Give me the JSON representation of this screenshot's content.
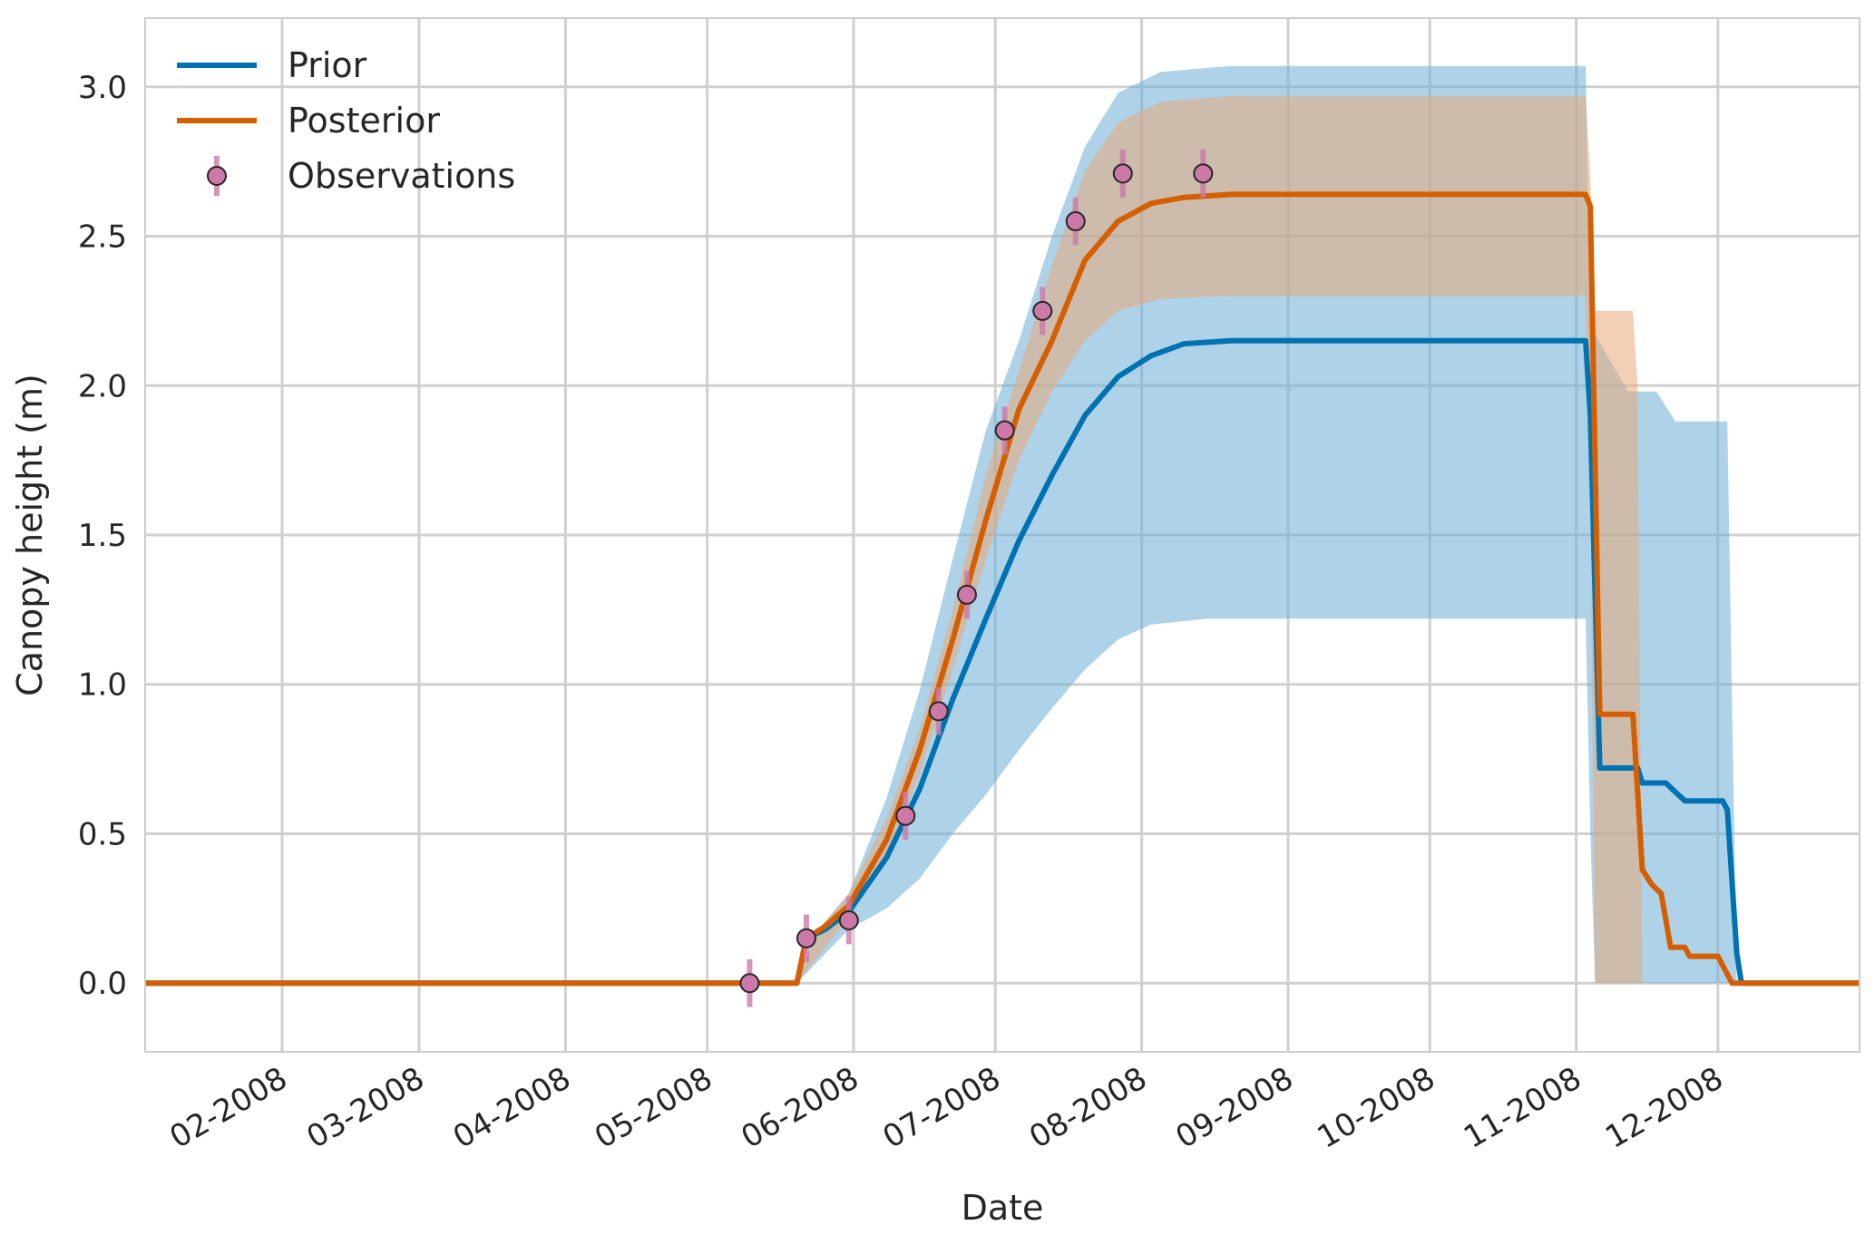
{
  "chart_data": {
    "type": "line",
    "title": "",
    "xlabel": "Date",
    "ylabel": "Canopy height (m)",
    "x_tick_labels": [
      "02-2008",
      "03-2008",
      "04-2008",
      "05-2008",
      "06-2008",
      "07-2008",
      "08-2008",
      "09-2008",
      "10-2008",
      "11-2008",
      "12-2008"
    ],
    "x_ticks": [
      "2008-02-01",
      "2008-03-01",
      "2008-04-01",
      "2008-05-01",
      "2008-06-01",
      "2008-07-01",
      "2008-08-01",
      "2008-09-01",
      "2008-10-01",
      "2008-11-01",
      "2008-12-01"
    ],
    "xlim": [
      "2008-01-03",
      "2008-12-31"
    ],
    "y_tick_labels": [
      "0.0",
      "0.5",
      "1.0",
      "1.5",
      "2.0",
      "2.5",
      "3.0"
    ],
    "ylim": [
      -0.23,
      3.23
    ],
    "grid": true,
    "legend": {
      "position": "top-left",
      "entries": [
        {
          "label": "Prior",
          "kind": "line",
          "color": "#0072b2"
        },
        {
          "label": "Posterior",
          "kind": "line",
          "color": "#d55e00"
        },
        {
          "label": "Observations",
          "kind": "marker",
          "color": "#cc79a7"
        }
      ]
    },
    "series": [
      {
        "name": "Prior",
        "color": "#0072b2",
        "band_color": "#6baed6",
        "points": [
          [
            "2008-01-03",
            0.0
          ],
          [
            "2008-05-20",
            0.0
          ],
          [
            "2008-05-22",
            0.15
          ],
          [
            "2008-05-26",
            0.18
          ],
          [
            "2008-05-31",
            0.24
          ],
          [
            "2008-06-08",
            0.42
          ],
          [
            "2008-06-15",
            0.65
          ],
          [
            "2008-06-22",
            0.95
          ],
          [
            "2008-06-29",
            1.22
          ],
          [
            "2008-07-06",
            1.48
          ],
          [
            "2008-07-13",
            1.7
          ],
          [
            "2008-07-20",
            1.9
          ],
          [
            "2008-07-27",
            2.03
          ],
          [
            "2008-08-03",
            2.1
          ],
          [
            "2008-08-10",
            2.14
          ],
          [
            "2008-08-20",
            2.15
          ],
          [
            "2008-11-03",
            2.15
          ],
          [
            "2008-11-04",
            1.9
          ],
          [
            "2008-11-06",
            0.72
          ],
          [
            "2008-11-14",
            0.72
          ],
          [
            "2008-11-15",
            0.67
          ],
          [
            "2008-11-20",
            0.67
          ],
          [
            "2008-11-22",
            0.64
          ],
          [
            "2008-11-24",
            0.61
          ],
          [
            "2008-12-02",
            0.61
          ],
          [
            "2008-12-03",
            0.58
          ],
          [
            "2008-12-05",
            0.1
          ],
          [
            "2008-12-06",
            0.0
          ],
          [
            "2008-12-31",
            0.0
          ]
        ],
        "band_upper": [
          [
            "2008-05-20",
            0.0
          ],
          [
            "2008-05-24",
            0.17
          ],
          [
            "2008-05-31",
            0.3
          ],
          [
            "2008-06-08",
            0.62
          ],
          [
            "2008-06-15",
            0.98
          ],
          [
            "2008-06-22",
            1.42
          ],
          [
            "2008-06-29",
            1.85
          ],
          [
            "2008-07-06",
            2.15
          ],
          [
            "2008-07-13",
            2.5
          ],
          [
            "2008-07-20",
            2.8
          ],
          [
            "2008-07-27",
            2.98
          ],
          [
            "2008-08-05",
            3.05
          ],
          [
            "2008-08-20",
            3.07
          ],
          [
            "2008-11-03",
            3.07
          ],
          [
            "2008-11-04",
            2.2
          ],
          [
            "2008-11-09",
            2.06
          ],
          [
            "2008-11-12",
            1.98
          ],
          [
            "2008-11-18",
            1.98
          ],
          [
            "2008-11-22",
            1.88
          ],
          [
            "2008-12-03",
            1.88
          ],
          [
            "2008-12-05",
            0.0
          ]
        ],
        "band_lower": [
          [
            "2008-05-20",
            0.0
          ],
          [
            "2008-05-31",
            0.18
          ],
          [
            "2008-06-08",
            0.25
          ],
          [
            "2008-06-15",
            0.35
          ],
          [
            "2008-06-22",
            0.5
          ],
          [
            "2008-06-29",
            0.63
          ],
          [
            "2008-07-06",
            0.78
          ],
          [
            "2008-07-13",
            0.92
          ],
          [
            "2008-07-20",
            1.05
          ],
          [
            "2008-07-27",
            1.15
          ],
          [
            "2008-08-03",
            1.2
          ],
          [
            "2008-08-15",
            1.22
          ],
          [
            "2008-11-03",
            1.22
          ],
          [
            "2008-11-04",
            0.5
          ],
          [
            "2008-11-05",
            0.0
          ]
        ]
      },
      {
        "name": "Posterior",
        "color": "#d55e00",
        "band_color": "#e8a878",
        "points": [
          [
            "2008-01-03",
            0.0
          ],
          [
            "2008-05-20",
            0.0
          ],
          [
            "2008-05-22",
            0.15
          ],
          [
            "2008-05-26",
            0.19
          ],
          [
            "2008-05-31",
            0.26
          ],
          [
            "2008-06-08",
            0.48
          ],
          [
            "2008-06-15",
            0.78
          ],
          [
            "2008-06-22",
            1.15
          ],
          [
            "2008-06-29",
            1.55
          ],
          [
            "2008-07-06",
            1.92
          ],
          [
            "2008-07-13",
            2.15
          ],
          [
            "2008-07-20",
            2.42
          ],
          [
            "2008-07-27",
            2.55
          ],
          [
            "2008-08-03",
            2.61
          ],
          [
            "2008-08-10",
            2.63
          ],
          [
            "2008-08-20",
            2.64
          ],
          [
            "2008-11-03",
            2.64
          ],
          [
            "2008-11-04",
            2.6
          ],
          [
            "2008-11-06",
            0.9
          ],
          [
            "2008-11-13",
            0.9
          ],
          [
            "2008-11-15",
            0.38
          ],
          [
            "2008-11-17",
            0.33
          ],
          [
            "2008-11-19",
            0.3
          ],
          [
            "2008-11-21",
            0.12
          ],
          [
            "2008-11-24",
            0.12
          ],
          [
            "2008-11-25",
            0.09
          ],
          [
            "2008-12-01",
            0.09
          ],
          [
            "2008-12-02",
            0.06
          ],
          [
            "2008-12-04",
            0.0
          ],
          [
            "2008-12-31",
            0.0
          ]
        ],
        "band_upper": [
          [
            "2008-05-20",
            0.0
          ],
          [
            "2008-05-24",
            0.17
          ],
          [
            "2008-05-31",
            0.3
          ],
          [
            "2008-06-08",
            0.55
          ],
          [
            "2008-06-15",
            0.85
          ],
          [
            "2008-06-22",
            1.25
          ],
          [
            "2008-06-29",
            1.7
          ],
          [
            "2008-07-06",
            2.05
          ],
          [
            "2008-07-13",
            2.4
          ],
          [
            "2008-07-20",
            2.72
          ],
          [
            "2008-07-27",
            2.88
          ],
          [
            "2008-08-05",
            2.95
          ],
          [
            "2008-08-20",
            2.97
          ],
          [
            "2008-11-03",
            2.97
          ],
          [
            "2008-11-04",
            2.7
          ],
          [
            "2008-11-05",
            2.25
          ],
          [
            "2008-11-13",
            2.25
          ],
          [
            "2008-11-14",
            2.0
          ],
          [
            "2008-11-15",
            0.0
          ]
        ],
        "band_lower": [
          [
            "2008-05-20",
            0.0
          ],
          [
            "2008-05-31",
            0.22
          ],
          [
            "2008-06-08",
            0.42
          ],
          [
            "2008-06-15",
            0.7
          ],
          [
            "2008-06-22",
            1.05
          ],
          [
            "2008-06-29",
            1.42
          ],
          [
            "2008-07-06",
            1.75
          ],
          [
            "2008-07-13",
            1.98
          ],
          [
            "2008-07-20",
            2.15
          ],
          [
            "2008-07-27",
            2.25
          ],
          [
            "2008-08-05",
            2.29
          ],
          [
            "2008-08-20",
            2.3
          ],
          [
            "2008-11-03",
            2.3
          ],
          [
            "2008-11-04",
            1.6
          ],
          [
            "2008-11-05",
            0.0
          ]
        ]
      }
    ],
    "observations": {
      "name": "Observations",
      "color": "#cc79a7",
      "points": [
        {
          "x": "2008-05-10",
          "y": 0.0,
          "err": 0.08
        },
        {
          "x": "2008-05-22",
          "y": 0.15,
          "err": 0.08
        },
        {
          "x": "2008-05-31",
          "y": 0.21,
          "err": 0.08
        },
        {
          "x": "2008-06-12",
          "y": 0.56,
          "err": 0.08
        },
        {
          "x": "2008-06-19",
          "y": 0.91,
          "err": 0.08
        },
        {
          "x": "2008-06-25",
          "y": 1.3,
          "err": 0.08
        },
        {
          "x": "2008-07-03",
          "y": 1.85,
          "err": 0.08
        },
        {
          "x": "2008-07-11",
          "y": 2.25,
          "err": 0.08
        },
        {
          "x": "2008-07-18",
          "y": 2.55,
          "err": 0.08
        },
        {
          "x": "2008-07-28",
          "y": 2.71,
          "err": 0.08
        },
        {
          "x": "2008-08-14",
          "y": 2.71,
          "err": 0.08
        }
      ]
    }
  }
}
